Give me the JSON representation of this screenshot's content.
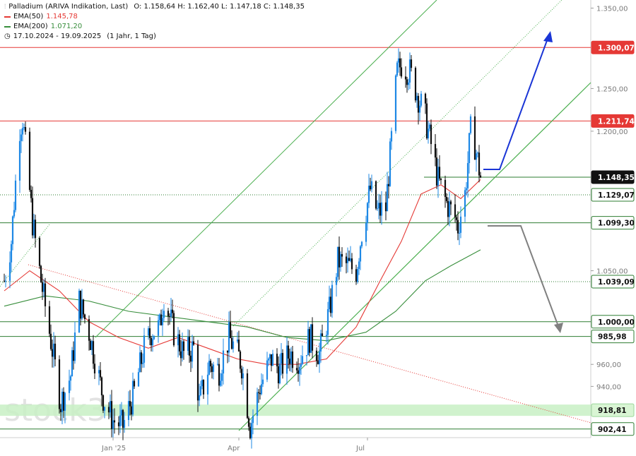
{
  "header": {
    "title": "Palladium (ARIVA Indikation, Last)",
    "ohlc": "O: 1.158,64  H: 1.162,40  L: 1.147,18  C: 1.148,35",
    "ema50_label": "EMA(50)",
    "ema50_value": "1.145,78",
    "ema200_label": "EMA(200)",
    "ema200_value": "1.071,20",
    "range": "17.10.2024 - 19.09.2025",
    "interval": "(1 Jahr, 1 Tag)"
  },
  "watermark": "stock3",
  "colors": {
    "up": "#1e88e5",
    "down": "#111111",
    "ema50": "#e53935",
    "ema200": "#388e3c",
    "resistance": "#e53935",
    "support": "#2e7d32",
    "channel": "#4caf50",
    "arrow_up": "#1a35d6",
    "arrow_down": "#808080",
    "support_zone": "#c8f0c4"
  },
  "chart_data": {
    "type": "candlestick",
    "title": "Palladium (ARIVA Indikation, Last)",
    "xlabel": "",
    "ylabel": "",
    "ylim": [
      895,
      1355
    ],
    "y_scale": "log",
    "y_ticks": [
      {
        "value": 940,
        "label": "940,00"
      },
      {
        "value": 960,
        "label": "960,00"
      },
      {
        "value": 1050,
        "label": "1.050,00"
      },
      {
        "value": 1200,
        "label": "1.200,00"
      },
      {
        "value": 1250,
        "label": "1.250,00"
      },
      {
        "value": 1350,
        "label": "1.350,00"
      }
    ],
    "x_ticks": [
      {
        "date": "2025-01-02",
        "label": "Jan '25"
      },
      {
        "date": "2025-04-01",
        "label": "Apr"
      },
      {
        "date": "2025-07-01",
        "label": "Jul"
      }
    ],
    "date_range": [
      "2024-10-17",
      "2025-09-19"
    ],
    "last_close": 1148.35,
    "series": [
      {
        "name": "Palladium",
        "kind": "ohlc",
        "anchors": [
          [
            "2024-10-17",
            1040
          ],
          [
            "2024-10-22",
            1080
          ],
          [
            "2024-10-28",
            1205
          ],
          [
            "2024-10-30",
            1215
          ],
          [
            "2024-11-06",
            1100
          ],
          [
            "2024-11-12",
            1040
          ],
          [
            "2024-11-18",
            990
          ],
          [
            "2024-11-26",
            925
          ],
          [
            "2024-12-03",
            950
          ],
          [
            "2024-12-09",
            1020
          ],
          [
            "2024-12-16",
            990
          ],
          [
            "2024-12-26",
            930
          ],
          [
            "2025-01-02",
            910
          ],
          [
            "2025-01-09",
            905
          ],
          [
            "2025-01-17",
            935
          ],
          [
            "2025-01-24",
            975
          ],
          [
            "2025-01-29",
            990
          ],
          [
            "2025-02-04",
            995
          ],
          [
            "2025-02-07",
            1025
          ],
          [
            "2025-02-14",
            990
          ],
          [
            "2025-02-21",
            970
          ],
          [
            "2025-02-28",
            975
          ],
          [
            "2025-03-04",
            925
          ],
          [
            "2025-03-11",
            960
          ],
          [
            "2025-03-18",
            955
          ],
          [
            "2025-03-25",
            985
          ],
          [
            "2025-03-31",
            970
          ],
          [
            "2025-04-03",
            960
          ],
          [
            "2025-04-09",
            905
          ],
          [
            "2025-04-16",
            940
          ],
          [
            "2025-04-24",
            965
          ],
          [
            "2025-04-30",
            955
          ],
          [
            "2025-05-07",
            970
          ],
          [
            "2025-05-14",
            965
          ],
          [
            "2025-05-21",
            985
          ],
          [
            "2025-05-28",
            970
          ],
          [
            "2025-06-04",
            1010
          ],
          [
            "2025-06-10",
            1060
          ],
          [
            "2025-06-17",
            1055
          ],
          [
            "2025-06-23",
            1050
          ],
          [
            "2025-06-27",
            1090
          ],
          [
            "2025-07-03",
            1135
          ],
          [
            "2025-07-08",
            1110
          ],
          [
            "2025-07-14",
            1115
          ],
          [
            "2025-07-18",
            1190
          ],
          [
            "2025-07-22",
            1270
          ],
          [
            "2025-07-25",
            1280
          ],
          [
            "2025-07-31",
            1270
          ],
          [
            "2025-08-05",
            1245
          ],
          [
            "2025-08-11",
            1215
          ],
          [
            "2025-08-15",
            1185
          ],
          [
            "2025-08-20",
            1145
          ],
          [
            "2025-08-26",
            1120
          ],
          [
            "2025-09-01",
            1105
          ],
          [
            "2025-09-03",
            1095
          ],
          [
            "2025-09-08",
            1130
          ],
          [
            "2025-09-12",
            1200
          ],
          [
            "2025-09-15",
            1185
          ],
          [
            "2025-09-19",
            1148.35
          ]
        ]
      },
      {
        "name": "EMA(50)",
        "value": 1145.78,
        "points": [
          [
            "2024-10-17",
            1030
          ],
          [
            "2024-11-04",
            1050
          ],
          [
            "2024-11-25",
            1030
          ],
          [
            "2024-12-16",
            1000
          ],
          [
            "2025-01-06",
            985
          ],
          [
            "2025-01-27",
            975
          ],
          [
            "2025-02-17",
            985
          ],
          [
            "2025-03-10",
            975
          ],
          [
            "2025-03-31",
            965
          ],
          [
            "2025-04-21",
            960
          ],
          [
            "2025-05-12",
            960
          ],
          [
            "2025-06-02",
            965
          ],
          [
            "2025-06-23",
            995
          ],
          [
            "2025-07-10",
            1040
          ],
          [
            "2025-07-25",
            1080
          ],
          [
            "2025-08-08",
            1130
          ],
          [
            "2025-08-22",
            1140
          ],
          [
            "2025-09-05",
            1125
          ],
          [
            "2025-09-19",
            1145.78
          ]
        ]
      },
      {
        "name": "EMA(200)",
        "value": 1071.2,
        "points": [
          [
            "2024-10-17",
            1015
          ],
          [
            "2024-11-15",
            1025
          ],
          [
            "2024-12-16",
            1020
          ],
          [
            "2025-01-13",
            1010
          ],
          [
            "2025-02-10",
            1005
          ],
          [
            "2025-03-10",
            1000
          ],
          [
            "2025-04-07",
            995
          ],
          [
            "2025-05-05",
            985
          ],
          [
            "2025-06-02",
            982
          ],
          [
            "2025-06-30",
            990
          ],
          [
            "2025-07-21",
            1010
          ],
          [
            "2025-08-11",
            1040
          ],
          [
            "2025-08-29",
            1055
          ],
          [
            "2025-09-19",
            1071.2
          ]
        ]
      }
    ],
    "price_tags": [
      {
        "value": 1300.07,
        "label": "1.300,07",
        "kind": "resistance"
      },
      {
        "value": 1211.74,
        "label": "1.211,74",
        "kind": "resistance"
      },
      {
        "value": 1148.35,
        "label": "1.148,35",
        "kind": "last"
      },
      {
        "value": 1129.07,
        "label": "1.129,07",
        "kind": "dotted"
      },
      {
        "value": 1099.3,
        "label": "1.099,30",
        "kind": "support"
      },
      {
        "value": 1039.09,
        "label": "1.039,09",
        "kind": "dotted"
      },
      {
        "value": 1000.0,
        "label": "1.000,00",
        "kind": "support"
      },
      {
        "value": 985.98,
        "label": "985,98",
        "kind": "support"
      },
      {
        "value": 918.81,
        "label": "918,81",
        "kind": "zone"
      },
      {
        "value": 902.41,
        "label": "902,41",
        "kind": "support"
      }
    ]
  }
}
